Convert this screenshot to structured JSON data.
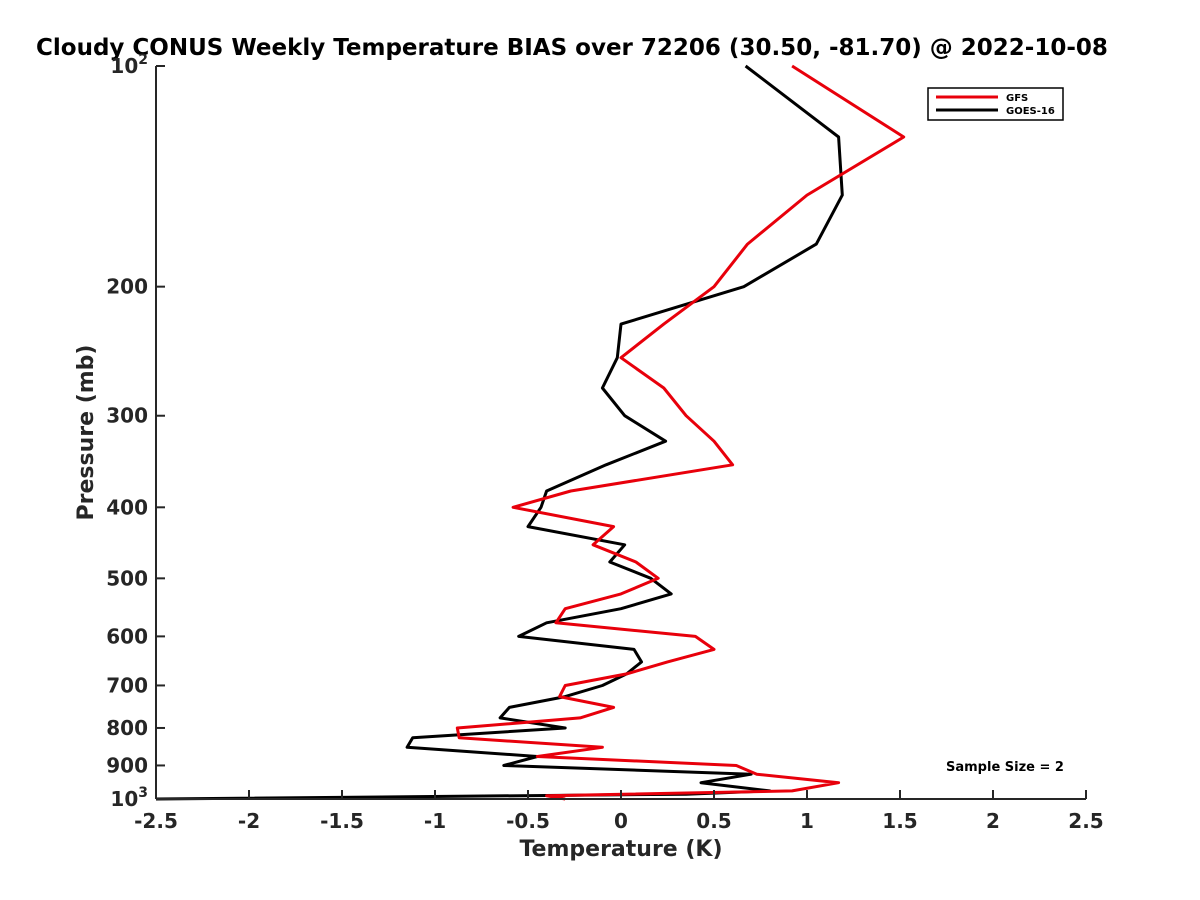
{
  "chart_data": {
    "type": "line",
    "title": "Cloudy CONUS Weekly Temperature BIAS over 72206 (30.50, -81.70) @ 2022-10-08",
    "xlabel": "Temperature (K)",
    "ylabel": "Pressure (mb)",
    "xlim": [
      -2.5,
      2.5
    ],
    "ylim": [
      100,
      1000
    ],
    "y_scale": "log",
    "y_reversed": true,
    "grid": false,
    "legend_position": "top-right",
    "annotation": "Sample Size = 2",
    "x_ticks": [
      -2.5,
      -2,
      -1.5,
      -1,
      -0.5,
      0,
      0.5,
      1,
      1.5,
      2,
      2.5
    ],
    "x_tick_labels": [
      "-2.5",
      "-2",
      "-1.5",
      "-1",
      "-0.5",
      "0",
      "0.5",
      "1",
      "1.5",
      "2",
      "2.5"
    ],
    "y_ticks": [
      100,
      200,
      300,
      400,
      500,
      600,
      700,
      800,
      900,
      1000
    ],
    "y_tick_labels": [
      {
        "base": "10",
        "sup": "2"
      },
      {
        "base": "200",
        "sup": ""
      },
      {
        "base": "300",
        "sup": ""
      },
      {
        "base": "400",
        "sup": ""
      },
      {
        "base": "500",
        "sup": ""
      },
      {
        "base": "600",
        "sup": ""
      },
      {
        "base": "700",
        "sup": ""
      },
      {
        "base": "800",
        "sup": ""
      },
      {
        "base": "900",
        "sup": ""
      },
      {
        "base": "10",
        "sup": "3"
      }
    ],
    "series": [
      {
        "name": "GFS",
        "color": "#e8000b",
        "points": [
          {
            "t": 0.92,
            "p": 100
          },
          {
            "t": 1.52,
            "p": 125
          },
          {
            "t": 1.0,
            "p": 150
          },
          {
            "t": 0.68,
            "p": 175
          },
          {
            "t": 0.5,
            "p": 200
          },
          {
            "t": 0.23,
            "p": 225
          },
          {
            "t": 0.0,
            "p": 250
          },
          {
            "t": 0.23,
            "p": 275
          },
          {
            "t": 0.35,
            "p": 300
          },
          {
            "t": 0.5,
            "p": 325
          },
          {
            "t": 0.6,
            "p": 350
          },
          {
            "t": -0.27,
            "p": 380
          },
          {
            "t": -0.58,
            "p": 400
          },
          {
            "t": -0.04,
            "p": 425
          },
          {
            "t": -0.15,
            "p": 450
          },
          {
            "t": 0.08,
            "p": 475
          },
          {
            "t": 0.2,
            "p": 500
          },
          {
            "t": 0.0,
            "p": 525
          },
          {
            "t": -0.3,
            "p": 550
          },
          {
            "t": -0.35,
            "p": 575
          },
          {
            "t": 0.4,
            "p": 600
          },
          {
            "t": 0.5,
            "p": 625
          },
          {
            "t": 0.25,
            "p": 650
          },
          {
            "t": 0.03,
            "p": 675
          },
          {
            "t": -0.3,
            "p": 700
          },
          {
            "t": -0.33,
            "p": 725
          },
          {
            "t": -0.04,
            "p": 750
          },
          {
            "t": -0.22,
            "p": 775
          },
          {
            "t": -0.88,
            "p": 800
          },
          {
            "t": -0.87,
            "p": 825
          },
          {
            "t": -0.1,
            "p": 850
          },
          {
            "t": -0.45,
            "p": 875
          },
          {
            "t": 0.62,
            "p": 900
          },
          {
            "t": 0.73,
            "p": 925
          },
          {
            "t": 1.17,
            "p": 950
          },
          {
            "t": 0.92,
            "p": 975
          },
          {
            "t": -0.4,
            "p": 990
          },
          {
            "t": -0.3,
            "p": 1000
          }
        ]
      },
      {
        "name": "GOES-16",
        "color": "#000000",
        "points": [
          {
            "t": 0.67,
            "p": 100
          },
          {
            "t": 1.17,
            "p": 125
          },
          {
            "t": 1.19,
            "p": 150
          },
          {
            "t": 1.05,
            "p": 175
          },
          {
            "t": 0.66,
            "p": 200
          },
          {
            "t": 0.0,
            "p": 225
          },
          {
            "t": -0.02,
            "p": 250
          },
          {
            "t": -0.1,
            "p": 275
          },
          {
            "t": 0.02,
            "p": 300
          },
          {
            "t": 0.24,
            "p": 325
          },
          {
            "t": -0.08,
            "p": 350
          },
          {
            "t": -0.4,
            "p": 380
          },
          {
            "t": -0.43,
            "p": 400
          },
          {
            "t": -0.5,
            "p": 425
          },
          {
            "t": 0.02,
            "p": 450
          },
          {
            "t": -0.06,
            "p": 475
          },
          {
            "t": 0.16,
            "p": 500
          },
          {
            "t": 0.27,
            "p": 525
          },
          {
            "t": 0.0,
            "p": 550
          },
          {
            "t": -0.4,
            "p": 575
          },
          {
            "t": -0.55,
            "p": 600
          },
          {
            "t": 0.07,
            "p": 625
          },
          {
            "t": 0.11,
            "p": 650
          },
          {
            "t": 0.03,
            "p": 675
          },
          {
            "t": -0.1,
            "p": 700
          },
          {
            "t": -0.3,
            "p": 725
          },
          {
            "t": -0.6,
            "p": 750
          },
          {
            "t": -0.65,
            "p": 775
          },
          {
            "t": -0.3,
            "p": 800
          },
          {
            "t": -1.12,
            "p": 825
          },
          {
            "t": -1.15,
            "p": 850
          },
          {
            "t": -0.45,
            "p": 875
          },
          {
            "t": -0.63,
            "p": 900
          },
          {
            "t": 0.7,
            "p": 925
          },
          {
            "t": 0.43,
            "p": 950
          },
          {
            "t": 0.8,
            "p": 975
          },
          {
            "t": 0.35,
            "p": 985
          },
          {
            "t": -2.5,
            "p": 1000
          }
        ]
      }
    ]
  }
}
